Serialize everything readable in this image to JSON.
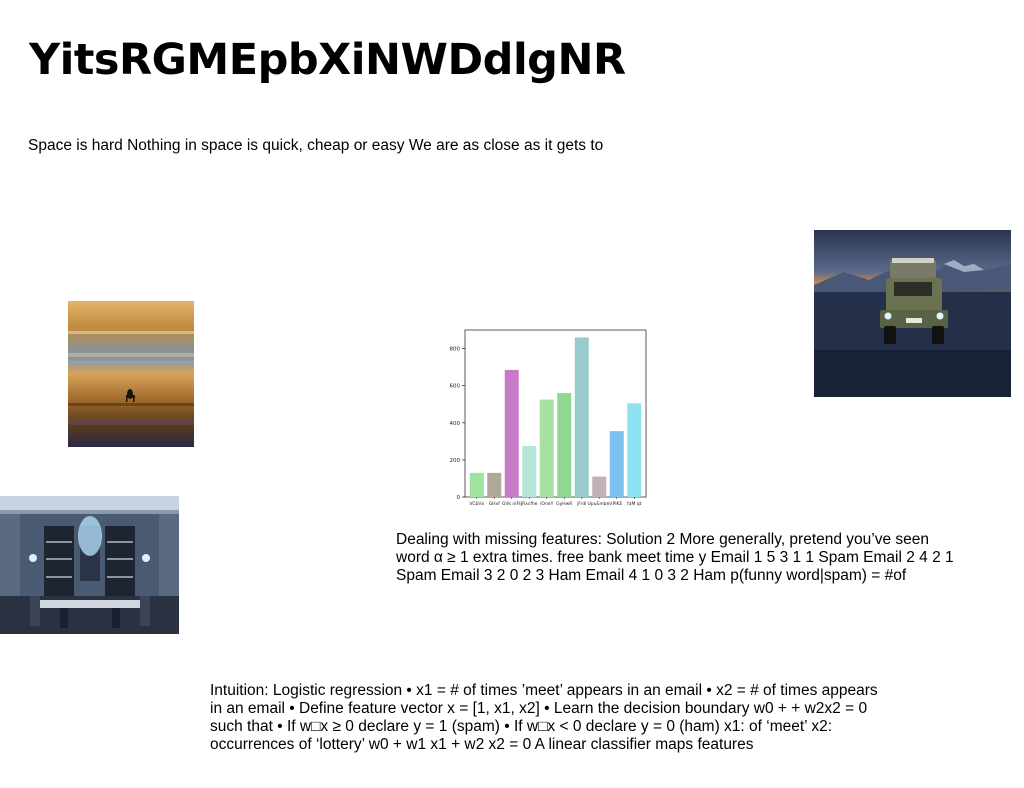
{
  "title": "YitsRGMEpbXiNWDdlgNR",
  "subtitle": "Space is hard Nothing in space is quick, cheap or easy We are as close as it gets to",
  "paragraph1": "Dealing with missing features: Solution 2 More generally, pretend you’ve seen word α ≥ 1 extra times. free bank meet time y Email 1 5 3 1 1 Spam Email 2 4 2 1 Spam Email 3 2 0 2 3 Ham Email 4 1 0 3 2 Ham p(funny word|spam) = #of",
  "paragraph2": "Intuition: Logistic regression • x1 = # of times ’meet’ appears in an email • x2 = # of times appears in an email • Define feature vector x = [1, x1, x2] • Learn the decision boundary w0 + + w2x2 = 0 such that • If w□x ≥ 0 declare y = 1 (spam) • If w□x < 0 declare y = 0 (ham) x1: of ‘meet’ x2: occurrences of ‘lottery’ w0 + w1 x1 + w2 x2 = 0 A linear classifier maps features",
  "chart_data": {
    "type": "bar",
    "categories": [
      "VCbVx",
      "GHxf",
      "GVk nIFli",
      "jRxcfhe",
      "iOneY",
      "GyHwR",
      "jFrdi",
      "UpuEmbm",
      "IPIKE",
      "faM qt"
    ],
    "values": [
      130,
      130,
      685,
      275,
      525,
      560,
      860,
      110,
      355,
      505
    ],
    "colors": [
      "#9fe39f",
      "#b0a898",
      "#c77ac7",
      "#b5e6da",
      "#a8e0a0",
      "#90d890",
      "#98cccc",
      "#c3b0b8",
      "#7ec1ef",
      "#8fe2f2"
    ],
    "yticks": [
      0,
      200,
      400,
      600,
      800
    ],
    "ylim": [
      0,
      900
    ],
    "title": "",
    "xlabel": "",
    "ylabel": "",
    "grid": false
  }
}
